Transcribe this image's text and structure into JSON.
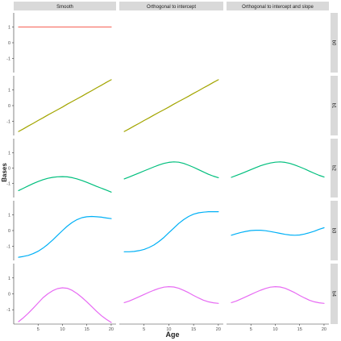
{
  "chart_data": {
    "type": "line",
    "xlabel": "Age",
    "ylabel": "Bases",
    "columns": [
      "Smooth",
      "Orthogonal to intercept",
      "Orthogonal to intercept and slope"
    ],
    "rows": [
      "b0",
      "b1",
      "b2",
      "b3",
      "b4"
    ],
    "xlim": [
      0,
      21
    ],
    "ylim": [
      -1.9,
      1.9
    ],
    "x_ticks": [
      5,
      10,
      15,
      20
    ],
    "y_ticks": [
      -1,
      0,
      1
    ],
    "x": [
      1,
      2,
      3,
      4,
      5,
      6,
      7,
      8,
      9,
      10,
      11,
      12,
      13,
      14,
      15,
      16,
      17,
      18,
      19,
      20
    ],
    "grid": false,
    "panels": [
      {
        "row": 0,
        "col": 0,
        "color": "#F8766D",
        "values": [
          1,
          1,
          1,
          1,
          1,
          1,
          1,
          1,
          1,
          1,
          1,
          1,
          1,
          1,
          1,
          1,
          1,
          1,
          1,
          1
        ]
      },
      {
        "row": 1,
        "col": 0,
        "color": "#A3A500",
        "values": [
          -1.65,
          -1.48,
          -1.3,
          -1.13,
          -0.95,
          -0.78,
          -0.6,
          -0.43,
          -0.26,
          -0.09,
          0.09,
          0.26,
          0.43,
          0.6,
          0.78,
          0.95,
          1.13,
          1.3,
          1.48,
          1.65
        ]
      },
      {
        "row": 1,
        "col": 1,
        "color": "#A3A500",
        "values": [
          -1.65,
          -1.48,
          -1.3,
          -1.13,
          -0.95,
          -0.78,
          -0.6,
          -0.43,
          -0.26,
          -0.09,
          0.09,
          0.26,
          0.43,
          0.6,
          0.78,
          0.95,
          1.13,
          1.3,
          1.48,
          1.65
        ]
      },
      {
        "row": 2,
        "col": 0,
        "color": "#00BF7D",
        "values": [
          -1.45,
          -1.3,
          -1.15,
          -1.0,
          -0.87,
          -0.75,
          -0.66,
          -0.6,
          -0.56,
          -0.55,
          -0.57,
          -0.62,
          -0.7,
          -0.8,
          -0.92,
          -1.05,
          -1.18,
          -1.3,
          -1.42,
          -1.55
        ]
      },
      {
        "row": 2,
        "col": 1,
        "color": "#00BF7D",
        "values": [
          -0.7,
          -0.58,
          -0.45,
          -0.32,
          -0.18,
          -0.05,
          0.08,
          0.2,
          0.3,
          0.37,
          0.4,
          0.38,
          0.3,
          0.18,
          0.05,
          -0.1,
          -0.25,
          -0.4,
          -0.52,
          -0.62
        ]
      },
      {
        "row": 2,
        "col": 2,
        "color": "#00BF7D",
        "values": [
          -0.6,
          -0.48,
          -0.36,
          -0.23,
          -0.1,
          0.03,
          0.15,
          0.25,
          0.33,
          0.38,
          0.4,
          0.37,
          0.3,
          0.2,
          0.08,
          -0.05,
          -0.2,
          -0.34,
          -0.47,
          -0.58
        ]
      },
      {
        "row": 3,
        "col": 0,
        "color": "#00B0F6",
        "values": [
          -1.7,
          -1.65,
          -1.58,
          -1.47,
          -1.32,
          -1.12,
          -0.88,
          -0.6,
          -0.3,
          0.0,
          0.28,
          0.52,
          0.7,
          0.82,
          0.88,
          0.9,
          0.88,
          0.85,
          0.8,
          0.76
        ]
      },
      {
        "row": 3,
        "col": 1,
        "color": "#00B0F6",
        "values": [
          -1.35,
          -1.35,
          -1.33,
          -1.28,
          -1.2,
          -1.08,
          -0.92,
          -0.7,
          -0.44,
          -0.14,
          0.16,
          0.45,
          0.7,
          0.9,
          1.04,
          1.13,
          1.17,
          1.2,
          1.2,
          1.2
        ]
      },
      {
        "row": 3,
        "col": 2,
        "color": "#00B0F6",
        "values": [
          -0.3,
          -0.2,
          -0.12,
          -0.05,
          0.0,
          0.02,
          0.02,
          -0.01,
          -0.06,
          -0.12,
          -0.18,
          -0.24,
          -0.28,
          -0.3,
          -0.28,
          -0.22,
          -0.14,
          -0.04,
          0.08,
          0.18
        ]
      },
      {
        "row": 4,
        "col": 0,
        "color": "#E76BF3",
        "values": [
          -1.75,
          -1.5,
          -1.22,
          -0.9,
          -0.58,
          -0.25,
          0.0,
          0.2,
          0.33,
          0.38,
          0.35,
          0.22,
          0.02,
          -0.23,
          -0.5,
          -0.8,
          -1.1,
          -1.38,
          -1.6,
          -1.8
        ]
      },
      {
        "row": 4,
        "col": 1,
        "color": "#E76BF3",
        "values": [
          -0.55,
          -0.45,
          -0.32,
          -0.18,
          -0.04,
          0.1,
          0.23,
          0.34,
          0.42,
          0.45,
          0.43,
          0.35,
          0.22,
          0.07,
          -0.1,
          -0.26,
          -0.4,
          -0.5,
          -0.56,
          -0.6
        ]
      },
      {
        "row": 4,
        "col": 2,
        "color": "#E76BF3",
        "values": [
          -0.55,
          -0.45,
          -0.32,
          -0.18,
          -0.04,
          0.1,
          0.23,
          0.34,
          0.42,
          0.45,
          0.43,
          0.35,
          0.22,
          0.07,
          -0.1,
          -0.26,
          -0.4,
          -0.5,
          -0.56,
          -0.6
        ]
      }
    ]
  }
}
